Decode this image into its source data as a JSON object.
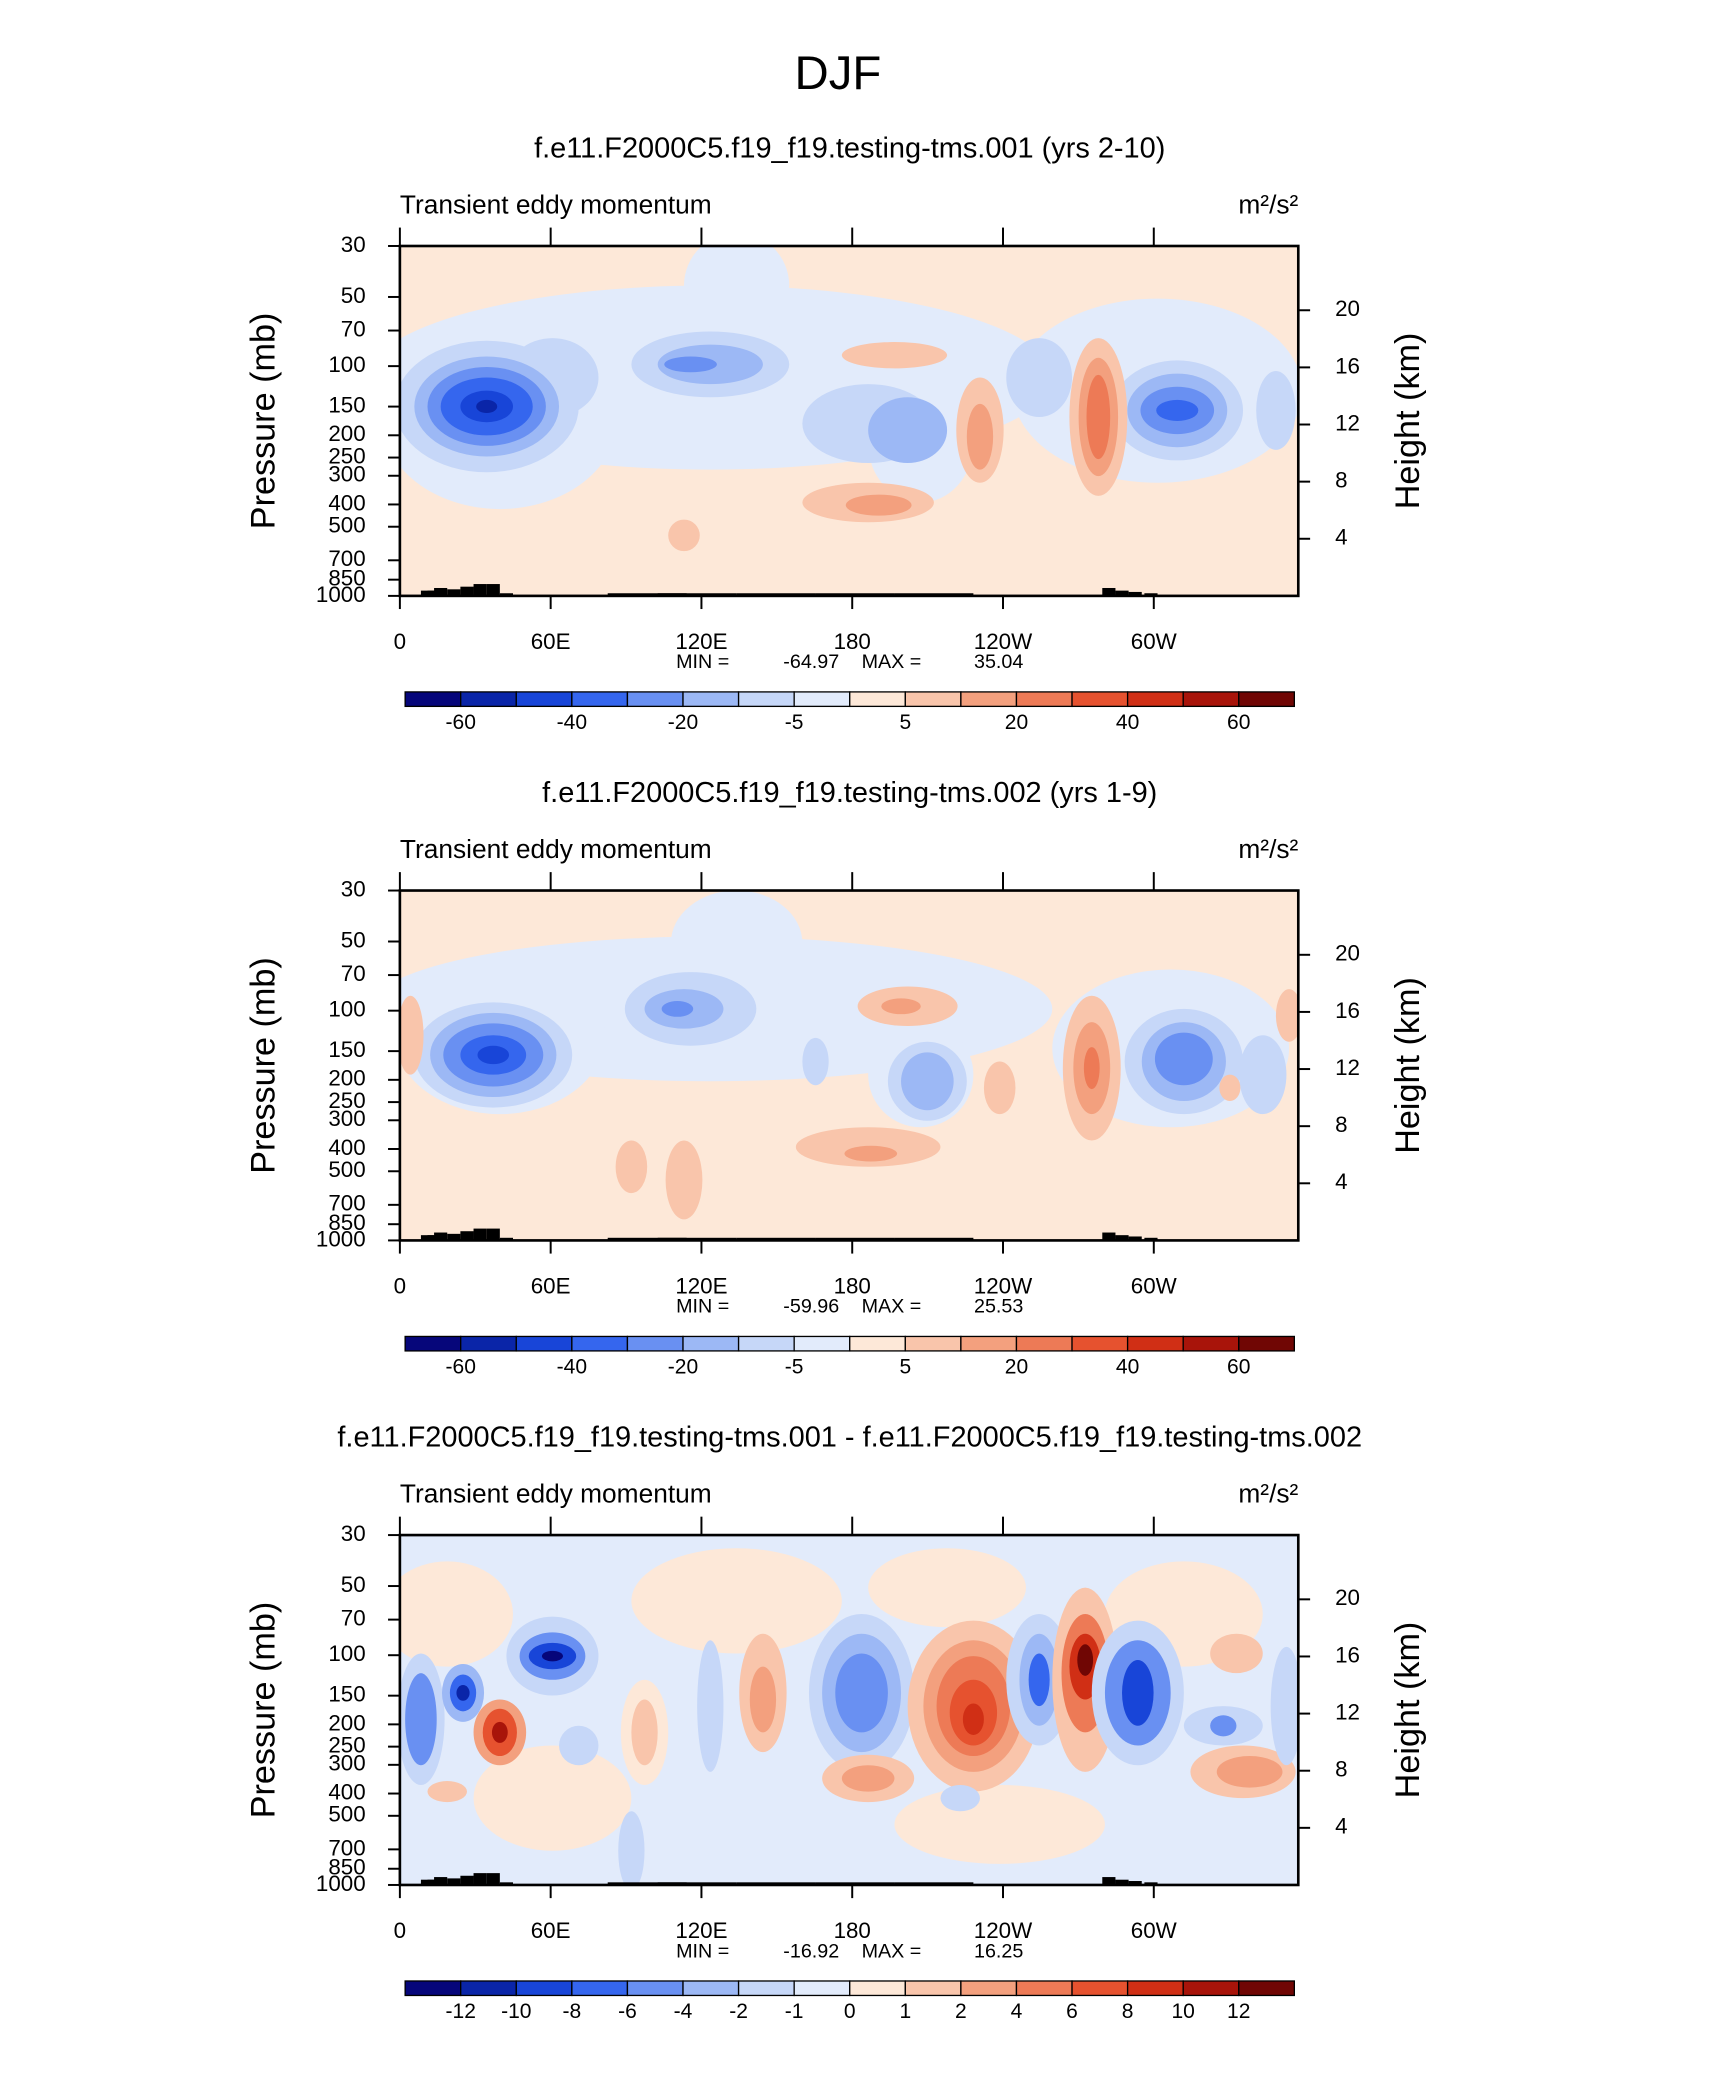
{
  "title": "DJF",
  "chart_data": [
    {
      "type": "contour",
      "title": "f.e11.F2000C5.f19_f19.testing-tms.001 (yrs 2-10)",
      "subtitle_left": "Transient eddy momentum",
      "subtitle_right": "m²/s²",
      "ylabel": "Pressure (mb)",
      "y2label": "Height (km)",
      "xlim": [
        0,
        357.5
      ],
      "xticks": [
        0,
        {
          "value": 60,
          "label": "60E"
        },
        {
          "value": 120,
          "label": "120E"
        },
        180,
        {
          "value": 240,
          "label": "120W"
        },
        {
          "value": 300,
          "label": "60W"
        }
      ],
      "ylim": [
        1000,
        30
      ],
      "yscale": "log",
      "yticks": [
        30,
        50,
        70,
        100,
        150,
        200,
        250,
        300,
        400,
        500,
        700,
        850,
        1000
      ],
      "y2lim": [
        0,
        24.5
      ],
      "y2ticks": [
        4,
        8,
        12,
        16,
        20
      ],
      "stats": {
        "min_label": "MIN =",
        "min": -64.97,
        "max_label": "MAX =",
        "max": 35.04
      },
      "colorbar": {
        "colors": [
          "#06067a",
          "#0a25a8",
          "#1845d8",
          "#3566ee",
          "#6990f2",
          "#9cb8f5",
          "#c6d7f8",
          "#e2ebfb",
          "#fde8d8",
          "#f9c5ab",
          "#f3a07e",
          "#ed7a56",
          "#e6522f",
          "#d02f15",
          "#a8140a",
          "#700604"
        ],
        "levels": [
          -60,
          null,
          -40,
          null,
          -20,
          null,
          -5,
          null,
          5,
          null,
          20,
          null,
          40,
          null,
          60
        ]
      }
    },
    {
      "type": "contour",
      "title": "f.e11.F2000C5.f19_f19.testing-tms.002 (yrs 1-9)",
      "subtitle_left": "Transient eddy momentum",
      "subtitle_right": "m²/s²",
      "ylabel": "Pressure (mb)",
      "y2label": "Height (km)",
      "xlim": [
        0,
        357.5
      ],
      "xticks": [
        0,
        {
          "value": 60,
          "label": "60E"
        },
        {
          "value": 120,
          "label": "120E"
        },
        180,
        {
          "value": 240,
          "label": "120W"
        },
        {
          "value": 300,
          "label": "60W"
        }
      ],
      "ylim": [
        1000,
        30
      ],
      "yscale": "log",
      "yticks": [
        30,
        50,
        70,
        100,
        150,
        200,
        250,
        300,
        400,
        500,
        700,
        850,
        1000
      ],
      "y2lim": [
        0,
        24.5
      ],
      "y2ticks": [
        4,
        8,
        12,
        16,
        20
      ],
      "stats": {
        "min_label": "MIN =",
        "min": -59.96,
        "max_label": "MAX =",
        "max": 25.53
      },
      "colorbar": {
        "colors": [
          "#06067a",
          "#0a25a8",
          "#1845d8",
          "#3566ee",
          "#6990f2",
          "#9cb8f5",
          "#c6d7f8",
          "#e2ebfb",
          "#fde8d8",
          "#f9c5ab",
          "#f3a07e",
          "#ed7a56",
          "#e6522f",
          "#d02f15",
          "#a8140a",
          "#700604"
        ],
        "levels": [
          -60,
          null,
          -40,
          null,
          -20,
          null,
          -5,
          null,
          5,
          null,
          20,
          null,
          40,
          null,
          60
        ]
      }
    },
    {
      "type": "contour",
      "title": "f.e11.F2000C5.f19_f19.testing-tms.001 - f.e11.F2000C5.f19_f19.testing-tms.002",
      "subtitle_left": "Transient eddy momentum",
      "subtitle_right": "m²/s²",
      "ylabel": "Pressure (mb)",
      "y2label": "Height (km)",
      "xlim": [
        0,
        357.5
      ],
      "xticks": [
        0,
        {
          "value": 60,
          "label": "60E"
        },
        {
          "value": 120,
          "label": "120E"
        },
        180,
        {
          "value": 240,
          "label": "120W"
        },
        {
          "value": 300,
          "label": "60W"
        }
      ],
      "ylim": [
        1000,
        30
      ],
      "yscale": "log",
      "yticks": [
        30,
        50,
        70,
        100,
        150,
        200,
        250,
        300,
        400,
        500,
        700,
        850,
        1000
      ],
      "y2lim": [
        0,
        24.5
      ],
      "y2ticks": [
        4,
        8,
        12,
        16,
        20
      ],
      "stats": {
        "min_label": "MIN =",
        "min": -16.92,
        "max_label": "MAX =",
        "max": 16.25
      },
      "colorbar": {
        "colors": [
          "#06067a",
          "#0a25a8",
          "#1845d8",
          "#3566ee",
          "#6990f2",
          "#9cb8f5",
          "#c6d7f8",
          "#e2ebfb",
          "#fde8d8",
          "#f9c5ab",
          "#f3a07e",
          "#ed7a56",
          "#e6522f",
          "#d02f15",
          "#a8140a",
          "#700604"
        ],
        "levels": [
          -12,
          -10,
          -8,
          -6,
          -4,
          -2,
          -1,
          0,
          1,
          2,
          4,
          6,
          8,
          10,
          12
        ]
      }
    }
  ]
}
